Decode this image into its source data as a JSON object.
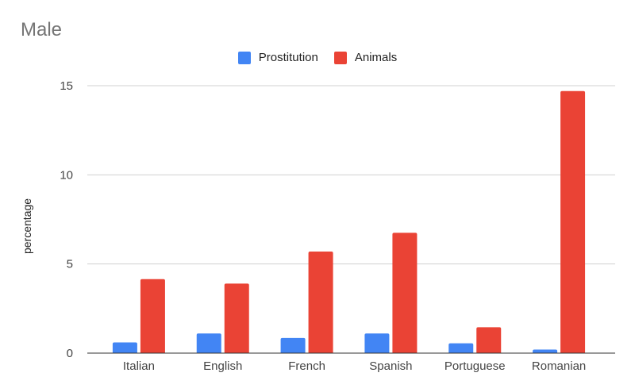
{
  "chart_data": {
    "type": "bar",
    "title": "Male",
    "xlabel": "",
    "ylabel": "percentage",
    "categories": [
      "Italian",
      "English",
      "French",
      "Spanish",
      "Portuguese",
      "Romanian"
    ],
    "series": [
      {
        "name": "Prostitution",
        "color": "#4285f4",
        "values": [
          0.6,
          1.1,
          0.85,
          1.1,
          0.55,
          0.2
        ]
      },
      {
        "name": "Animals",
        "color": "#ea4335",
        "values": [
          4.15,
          3.9,
          5.7,
          6.75,
          1.45,
          14.7
        ]
      }
    ],
    "ylim": [
      0,
      15
    ],
    "yticks": [
      "0",
      "5",
      "10",
      "15"
    ],
    "grid": true,
    "legend_position": "top-center"
  }
}
